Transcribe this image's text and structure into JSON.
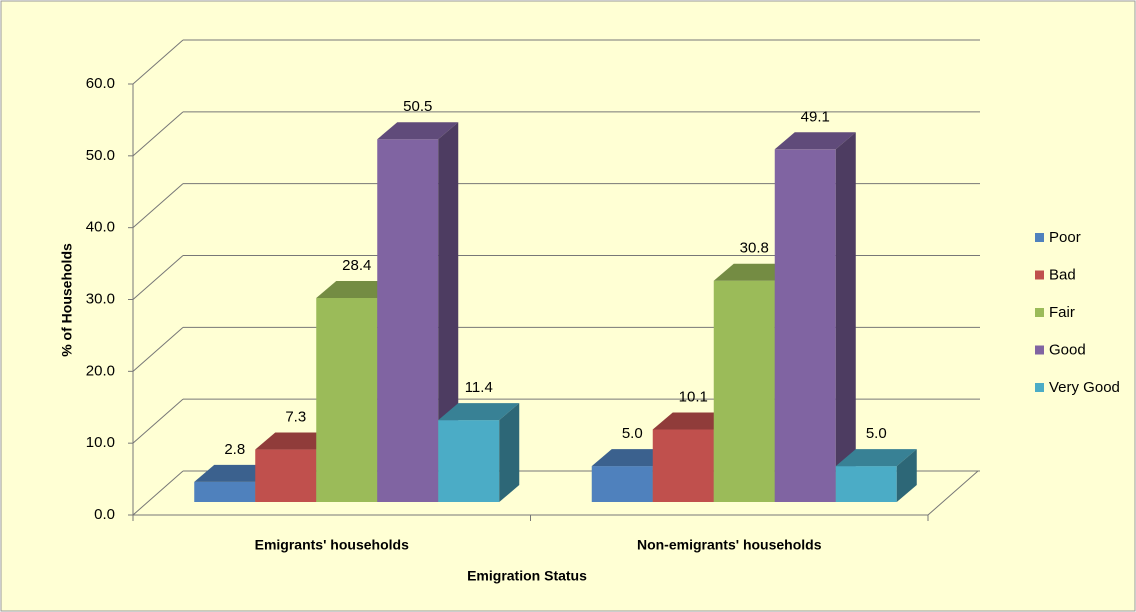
{
  "chart_data": {
    "type": "bar3d",
    "x_label": "Emigration Status",
    "y_label": "% of Households",
    "categories": [
      "Emigrants' households",
      "Non-emigrants' households"
    ],
    "series": [
      {
        "name": "Poor",
        "color": "#4f81bd",
        "values": [
          2.8,
          5.0
        ],
        "value_labels": [
          "2.8",
          "5.0"
        ]
      },
      {
        "name": "Bad",
        "color": "#c0504d",
        "values": [
          7.3,
          10.1
        ],
        "value_labels": [
          "7.3",
          "10.1"
        ]
      },
      {
        "name": "Fair",
        "color": "#9bbb59",
        "values": [
          28.4,
          30.8
        ],
        "value_labels": [
          "28.4",
          "30.8"
        ]
      },
      {
        "name": "Good",
        "color": "#8064a2",
        "values": [
          50.5,
          49.1
        ],
        "value_labels": [
          "50.5",
          "49.1"
        ]
      },
      {
        "name": "Very Good",
        "color": "#4bacc6",
        "values": [
          11.4,
          5.0
        ],
        "value_labels": [
          "11.4",
          "5.0"
        ]
      }
    ],
    "ylim": [
      0,
      60
    ],
    "yticks": [
      {
        "value": 0,
        "label": "0.0"
      },
      {
        "value": 10,
        "label": "10.0"
      },
      {
        "value": 20,
        "label": "20.0"
      },
      {
        "value": 30,
        "label": "30.0"
      },
      {
        "value": 40,
        "label": "40.0"
      },
      {
        "value": 50,
        "label": "50.0"
      },
      {
        "value": 60,
        "label": "60.0"
      }
    ],
    "grid": true,
    "legend": "right"
  }
}
